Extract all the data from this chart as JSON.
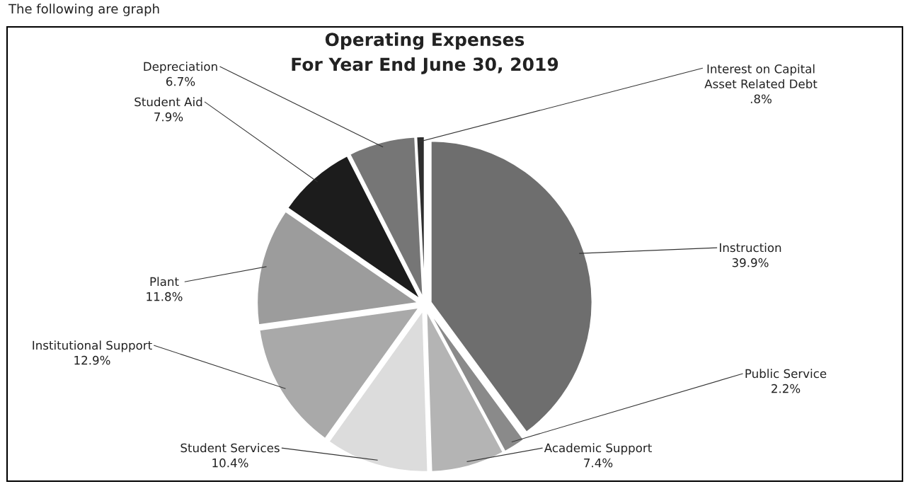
{
  "chart_data": {
    "type": "pie",
    "title": "Operating Expenses",
    "subtitle": "For Year End June 30, 2019",
    "annotations": [
      "The following are graph"
    ],
    "categories": [
      "Instruction",
      "Public Service",
      "Academic Support",
      "Student Services",
      "Institutional Support",
      "Plant",
      "Student Aid",
      "Depreciation",
      "Interest on Capital Asset Related Debt"
    ],
    "values": [
      39.9,
      2.2,
      7.4,
      10.4,
      12.9,
      11.8,
      7.9,
      6.7,
      0.8
    ],
    "value_labels": [
      "39.9%",
      "2.2%",
      "7.4%",
      "10.4%",
      "12.9%",
      "11.8%",
      "7.9%",
      "6.7%",
      ".8%"
    ],
    "colors": [
      "#6e6e6e",
      "#8a8a8a",
      "#b4b4b4",
      "#dcdcdc",
      "#a9a9a9",
      "#9c9c9c",
      "#1c1c1c",
      "#767676",
      "#2e2e2e"
    ],
    "legend": false
  }
}
